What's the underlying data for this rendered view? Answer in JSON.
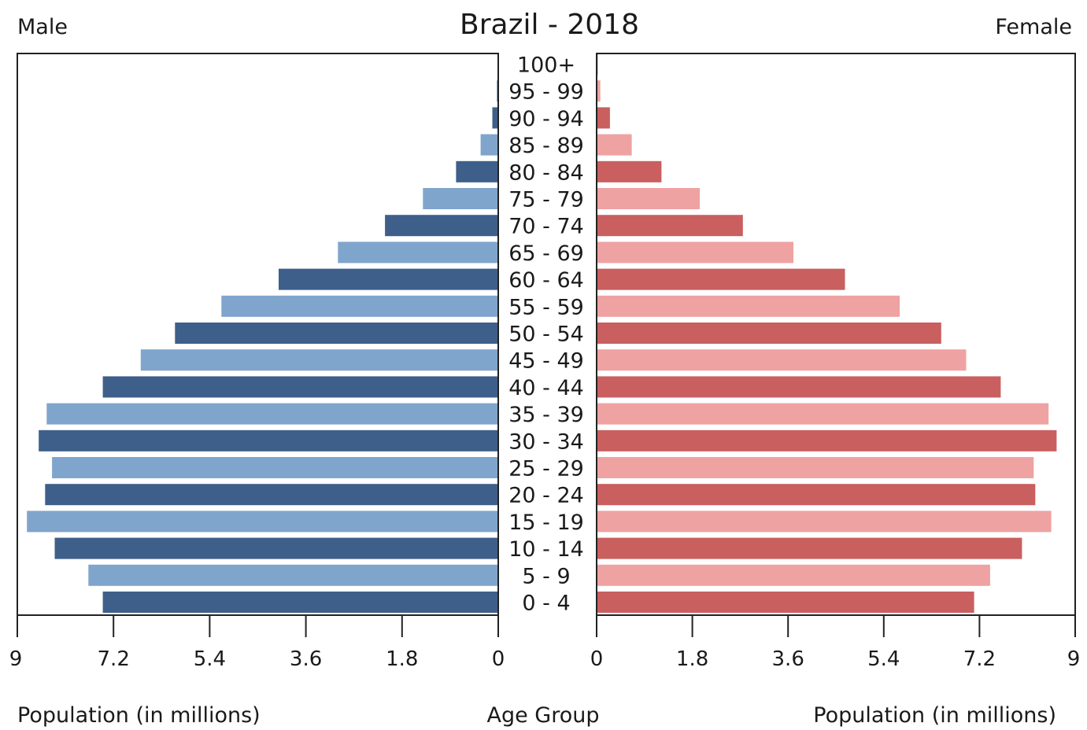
{
  "chart_data": {
    "type": "bar",
    "title": "Brazil - 2018",
    "left_label": "Male",
    "right_label": "Female",
    "center_label": "Age Group",
    "xlabel_left": "Population (in millions)",
    "xlabel_right": "Population (in millions)",
    "xlim": [
      0,
      9
    ],
    "tick_labels": [
      "0",
      "1.8",
      "3.6",
      "5.4",
      "7.2",
      "9"
    ],
    "categories": [
      "0 - 4",
      "5 - 9",
      "10 - 14",
      "15 - 19",
      "20 - 24",
      "25 - 29",
      "30 - 34",
      "35 - 39",
      "40 - 44",
      "45 - 49",
      "50 - 54",
      "55 - 59",
      "60 - 64",
      "65 - 69",
      "70 - 74",
      "75 - 79",
      "80 - 84",
      "85 - 89",
      "90 - 94",
      "95 - 99",
      "100+"
    ],
    "series": [
      {
        "name": "Male",
        "values": [
          7.4,
          7.67,
          8.3,
          8.82,
          8.48,
          8.35,
          8.6,
          8.45,
          7.4,
          6.69,
          6.05,
          5.18,
          4.11,
          3.0,
          2.12,
          1.41,
          0.79,
          0.33,
          0.11,
          0.03,
          0.005
        ],
        "colors": [
          "#3e5f8a",
          "#7fa5cc"
        ]
      },
      {
        "name": "Female",
        "values": [
          7.1,
          7.4,
          8.0,
          8.55,
          8.25,
          8.22,
          8.65,
          8.5,
          7.6,
          6.95,
          6.48,
          5.7,
          4.67,
          3.7,
          2.75,
          1.94,
          1.22,
          0.66,
          0.25,
          0.07,
          0.02
        ],
        "colors": [
          "#c95f5f",
          "#efa2a2"
        ]
      }
    ],
    "grid": false,
    "legend": "none"
  }
}
